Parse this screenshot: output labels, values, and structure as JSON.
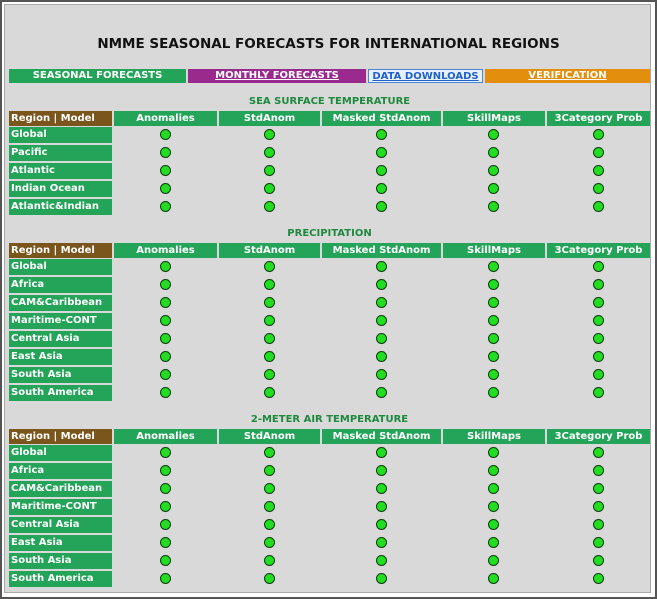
{
  "header": {
    "title": "NMME SEASONAL FORECASTS FOR INTERNATIONAL REGIONS"
  },
  "tabs": [
    "SEASONAL FORECASTS",
    "MONTHLY FORECASTS",
    "DATA DOWNLOADS",
    "VERIFICATION"
  ],
  "sections": [
    {
      "title": "SEA SURFACE TEMPERATURE",
      "header": [
        "Region | Model",
        "Anomalies",
        "StdAnom",
        "Masked StdAnom",
        "SkillMaps",
        "3Category Prob"
      ],
      "rows": [
        "Global",
        "Pacific",
        "Atlantic",
        "Indian Ocean",
        "Atlantic&Indian"
      ]
    },
    {
      "title": "PRECIPITATION",
      "header": [
        "Region | Model",
        "Anomalies",
        "StdAnom",
        "Masked StdAnom",
        "SkillMaps",
        "3Category Prob"
      ],
      "rows": [
        "Global",
        "Africa",
        "CAM&Caribbean",
        "Maritime-CONT",
        "Central Asia",
        "East Asia",
        "South Asia",
        "South America"
      ]
    },
    {
      "title": "2-METER AIR TEMPERATURE",
      "header": [
        "Region | Model",
        "Anomalies",
        "StdAnom",
        "Masked StdAnom",
        "SkillMaps",
        "3Category Prob"
      ],
      "rows": [
        "Global",
        "Africa",
        "CAM&Caribbean",
        "Maritime-CONT",
        "Central Asia",
        "East Asia",
        "South Asia",
        "South America"
      ]
    }
  ]
}
